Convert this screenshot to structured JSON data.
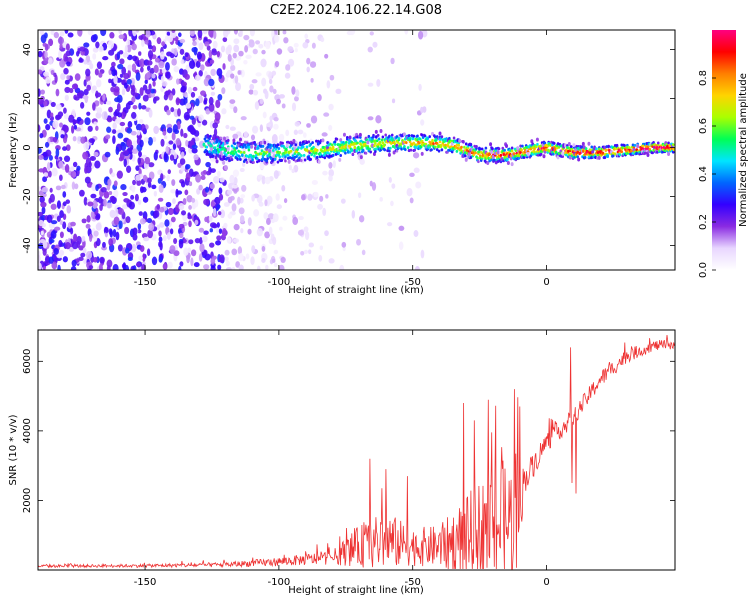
{
  "figure": {
    "title": "C2E2.2024.106.22.14.G08"
  },
  "chart_data": [
    {
      "type": "heatmap",
      "title": "C2E2.2024.106.22.14.G08",
      "xlabel": "Height of straight line (km)",
      "ylabel": "Frequency (Hz)",
      "xlim": [
        -190,
        48
      ],
      "ylim": [
        -50,
        48
      ],
      "xticks": [
        -150,
        -100,
        -50,
        0
      ],
      "yticks": [
        -40,
        -20,
        0,
        20,
        40
      ],
      "colorbar": {
        "label": "Normalized spectral amplitude",
        "range": [
          0.0,
          1.0
        ],
        "ticks": [
          "0.0",
          "0.2",
          "0.4",
          "0.6",
          "0.8"
        ],
        "tick_values": [
          0.0,
          0.2,
          0.4,
          0.6,
          0.8
        ],
        "colormap": [
          "#ffffff",
          "#e8d6ff",
          "#8a2be2",
          "#3300ff",
          "#0066ff",
          "#00e5ff",
          "#00ff55",
          "#aaff00",
          "#ffd400",
          "#ff7f00",
          "#ff0000",
          "#ff0080"
        ]
      },
      "ridge": [
        {
          "x": -128,
          "y": 1
        },
        {
          "x": -115,
          "y": -2
        },
        {
          "x": -100,
          "y": -2
        },
        {
          "x": -85,
          "y": -1
        },
        {
          "x": -70,
          "y": 1
        },
        {
          "x": -55,
          "y": 2
        },
        {
          "x": -45,
          "y": 2
        },
        {
          "x": -35,
          "y": 1
        },
        {
          "x": -25,
          "y": -3
        },
        {
          "x": -15,
          "y": -3
        },
        {
          "x": -5,
          "y": -1
        },
        {
          "x": 0,
          "y": 0
        },
        {
          "x": 10,
          "y": -2
        },
        {
          "x": 20,
          "y": -2
        },
        {
          "x": 30,
          "y": -1
        },
        {
          "x": 40,
          "y": 0
        },
        {
          "x": 48,
          "y": 0
        }
      ],
      "noise_region_x": [
        -190,
        -75
      ]
    },
    {
      "type": "line",
      "xlabel": "Height of straight line (km)",
      "ylabel": "SNR (10 * v/v)",
      "xlim": [
        -190,
        48
      ],
      "ylim": [
        0,
        6900
      ],
      "xticks": [
        -150,
        -100,
        -50,
        0
      ],
      "yticks": [
        2000,
        4000,
        6000
      ],
      "color": "#ee3333",
      "envelope": [
        {
          "x": -190,
          "base": 100,
          "amp": 80
        },
        {
          "x": -150,
          "base": 110,
          "amp": 90
        },
        {
          "x": -120,
          "base": 130,
          "amp": 140
        },
        {
          "x": -100,
          "base": 200,
          "amp": 250
        },
        {
          "x": -80,
          "base": 300,
          "amp": 400
        },
        {
          "x": -70,
          "base": 500,
          "amp": 1200
        },
        {
          "x": -60,
          "base": 600,
          "amp": 1700
        },
        {
          "x": -50,
          "base": 500,
          "amp": 1100
        },
        {
          "x": -40,
          "base": 500,
          "amp": 1200
        },
        {
          "x": -30,
          "base": 500,
          "amp": 2500
        },
        {
          "x": -20,
          "base": 800,
          "amp": 3500
        },
        {
          "x": -12,
          "base": 800,
          "amp": 3800
        },
        {
          "x": -8,
          "base": 2500,
          "amp": 800
        },
        {
          "x": 0,
          "base": 3600,
          "amp": 600
        },
        {
          "x": 10,
          "base": 4300,
          "amp": 500
        },
        {
          "x": 20,
          "base": 5400,
          "amp": 500
        },
        {
          "x": 30,
          "base": 6100,
          "amp": 400
        },
        {
          "x": 40,
          "base": 6400,
          "amp": 300
        },
        {
          "x": 48,
          "base": 6450,
          "amp": 300
        }
      ],
      "spikes": [
        {
          "x": 9,
          "y": 6400
        },
        {
          "x": 9.5,
          "y": 2500
        },
        {
          "x": 11,
          "y": 2200
        },
        {
          "x": 7,
          "y": 4200
        },
        {
          "x": -10,
          "y": 4700
        },
        {
          "x": -12,
          "y": 5200
        },
        {
          "x": -27,
          "y": 4300
        },
        {
          "x": -31,
          "y": 4800
        },
        {
          "x": -66,
          "y": 3200
        },
        {
          "x": -52,
          "y": 2700
        },
        {
          "x": -60,
          "y": 2900
        }
      ]
    }
  ]
}
